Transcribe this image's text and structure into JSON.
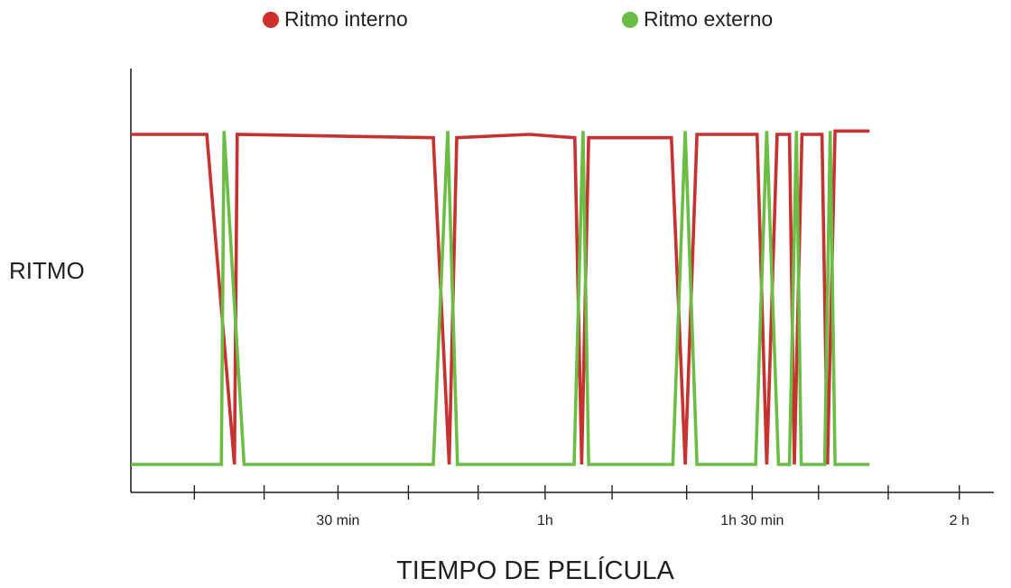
{
  "chart_data": {
    "type": "line",
    "xlabel": "TIEMPO DE PELÍCULA",
    "ylabel": "RITMO",
    "x_unit": "min",
    "xlim": [
      0,
      125
    ],
    "ylim": [
      0,
      1
    ],
    "x_ticks": [
      {
        "value": 9.2,
        "label": ""
      },
      {
        "value": 19.3,
        "label": ""
      },
      {
        "value": 30,
        "label": "30 min"
      },
      {
        "value": 40.2,
        "label": ""
      },
      {
        "value": 50.3,
        "label": ""
      },
      {
        "value": 60,
        "label": "1h"
      },
      {
        "value": 69.7,
        "label": ""
      },
      {
        "value": 80.5,
        "label": ""
      },
      {
        "value": 90,
        "label": "1h 30 min"
      },
      {
        "value": 99.6,
        "label": ""
      },
      {
        "value": 109.7,
        "label": ""
      },
      {
        "value": 120,
        "label": "2 h"
      }
    ],
    "series": [
      {
        "name": "Ritmo interno",
        "color": "#c5322f",
        "points": [
          [
            0,
            1.0
          ],
          [
            11,
            1.0
          ],
          [
            15,
            0.0
          ],
          [
            15.4,
            1.0
          ],
          [
            43.8,
            0.99
          ],
          [
            46.1,
            0.0
          ],
          [
            47.2,
            0.99
          ],
          [
            57.7,
            1.0
          ],
          [
            64.3,
            0.99
          ],
          [
            65.3,
            0.0
          ],
          [
            66.3,
            0.99
          ],
          [
            78.3,
            0.99
          ],
          [
            80.3,
            0.0
          ],
          [
            82.0,
            1.0
          ],
          [
            90.7,
            1.0
          ],
          [
            92.1,
            0.0
          ],
          [
            93.6,
            1.0
          ],
          [
            95.4,
            1.0
          ],
          [
            96.1,
            0.0
          ],
          [
            97.2,
            1.0
          ],
          [
            100.1,
            1.0
          ],
          [
            100.9,
            0.0
          ],
          [
            102.0,
            1.01
          ],
          [
            107.0,
            1.01
          ]
        ]
      },
      {
        "name": "Ritmo externo",
        "color": "#6cbd45",
        "points": [
          [
            0,
            0.0
          ],
          [
            13.1,
            0.0
          ],
          [
            13.5,
            1.01
          ],
          [
            16.4,
            0.0
          ],
          [
            43.8,
            0.0
          ],
          [
            45.9,
            1.01
          ],
          [
            47.3,
            0.0
          ],
          [
            64.2,
            0.0
          ],
          [
            65.5,
            1.01
          ],
          [
            66.3,
            0.0
          ],
          [
            78.5,
            0.0
          ],
          [
            80.3,
            1.01
          ],
          [
            82.0,
            0.0
          ],
          [
            90.5,
            0.0
          ],
          [
            92.1,
            1.01
          ],
          [
            93.8,
            0.0
          ],
          [
            95.4,
            0.0
          ],
          [
            96.4,
            1.01
          ],
          [
            97.1,
            0.0
          ],
          [
            100.5,
            0.0
          ],
          [
            101.3,
            1.01
          ],
          [
            102.0,
            0.0
          ],
          [
            107.0,
            0.0
          ]
        ]
      }
    ],
    "legend": "top-center",
    "grid": false
  }
}
